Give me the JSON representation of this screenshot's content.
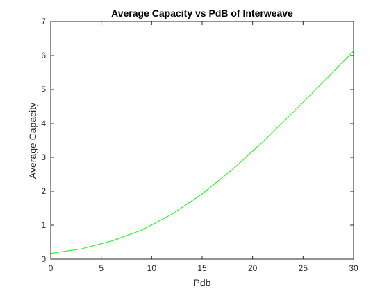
{
  "chart_data": {
    "type": "line",
    "title": "Average Capacity vs PdB of Interweave",
    "xlabel": "Pdb",
    "ylabel": "Average Capacity",
    "xlim": [
      0,
      30
    ],
    "ylim": [
      0,
      7
    ],
    "xticks": [
      "0",
      "5",
      "10",
      "15",
      "20",
      "25",
      "30"
    ],
    "yticks": [
      "0",
      "1",
      "2",
      "3",
      "4",
      "5",
      "6",
      "7"
    ],
    "grid": false,
    "series": [
      {
        "color": "#00ff00",
        "x": [
          0,
          3,
          6,
          9,
          12,
          15,
          18,
          21,
          24,
          27,
          30
        ],
        "y": [
          0.17,
          0.3,
          0.53,
          0.85,
          1.32,
          1.92,
          2.64,
          3.45,
          4.32,
          5.22,
          6.13
        ]
      }
    ]
  }
}
